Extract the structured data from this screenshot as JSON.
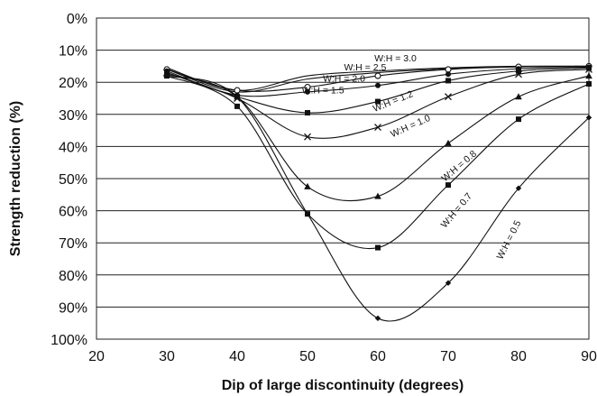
{
  "chart_data": {
    "type": "line",
    "title": "",
    "xlabel": "Dip of large discontinuity (degrees)",
    "ylabel": "Strength reduction (%)",
    "xlim": [
      20,
      90
    ],
    "ylim": [
      0,
      100
    ],
    "y_axis_inverted": true,
    "x_ticks": [
      20,
      30,
      40,
      50,
      60,
      70,
      80,
      90
    ],
    "y_ticks": [
      0,
      10,
      20,
      30,
      40,
      50,
      60,
      70,
      80,
      90,
      100
    ],
    "x_tick_labels": [
      "20",
      "30",
      "40",
      "50",
      "60",
      "70",
      "80",
      "90"
    ],
    "y_tick_labels": [
      "0%",
      "10%",
      "20%",
      "30%",
      "40%",
      "50%",
      "60%",
      "70%",
      "80%",
      "90%",
      "100%"
    ],
    "grid": "horizontal",
    "legend": "none",
    "x": [
      30,
      40,
      50,
      60,
      70,
      80,
      90
    ],
    "series": [
      {
        "key": "s30",
        "label": "W:H = 3.0",
        "marker": "none",
        "values": [
          15.5,
          22.5,
          18,
          16.5,
          15.5,
          15.0,
          15.0
        ]
      },
      {
        "key": "s25",
        "label": "W:H = 2.5",
        "marker": "none",
        "values": [
          16.0,
          23.0,
          19,
          17.0,
          15.8,
          15.2,
          15.0
        ]
      },
      {
        "key": "s20",
        "label": "W:H = 2.0",
        "marker": "circle",
        "values": [
          16.0,
          22.5,
          21.5,
          18.0,
          16.0,
          15.2,
          15.0
        ]
      },
      {
        "key": "s15",
        "label": "W:H = 1.5",
        "marker": "dot",
        "values": [
          16.5,
          24.0,
          23.0,
          21.0,
          17.5,
          15.8,
          15.3
        ]
      },
      {
        "key": "s12",
        "label": "W:H = 1.2",
        "marker": "square",
        "values": [
          17.0,
          24.5,
          29.5,
          26.0,
          19.5,
          16.5,
          15.5
        ]
      },
      {
        "key": "s10",
        "label": "W:H = 1.0",
        "marker": "cross",
        "values": [
          17.0,
          25.0,
          37.0,
          34.0,
          24.5,
          17.5,
          16.0
        ]
      },
      {
        "key": "s08",
        "label": "W:H = 0.8",
        "marker": "triangle",
        "values": [
          17.5,
          24.5,
          52.5,
          55.5,
          39.0,
          24.5,
          18.0
        ]
      },
      {
        "key": "s07",
        "label": "W:H = 0.7",
        "marker": "square",
        "values": [
          18.0,
          27.5,
          61.0,
          71.5,
          52.0,
          31.5,
          20.5
        ]
      },
      {
        "key": "s05",
        "label": "W:H = 0.5",
        "marker": "diamond",
        "values": [
          18.0,
          24.5,
          61.0,
          93.5,
          82.5,
          53.0,
          31.0
        ]
      }
    ],
    "annotations": [
      {
        "series": "s30",
        "text": "W:H = 3.0",
        "x": 62.5,
        "y": 13.5,
        "angle": 0
      },
      {
        "series": "s25",
        "text": "W:H = 2.5",
        "x": 58.2,
        "y": 16.3,
        "angle": 0
      },
      {
        "series": "s20",
        "text": "W:H = 2.0",
        "x": 55.2,
        "y": 19.8,
        "angle": 0
      },
      {
        "series": "s15",
        "text": "W:H = 1.5",
        "x": 52.2,
        "y": 23.5,
        "angle": 0
      },
      {
        "series": "s12",
        "text": "W:H = 1.2",
        "x": 62.3,
        "y": 26.8,
        "angle": -22
      },
      {
        "series": "s10",
        "text": "W:H = 1.0",
        "x": 64.8,
        "y": 34.5,
        "angle": -24
      },
      {
        "series": "s08",
        "text": "W:H = 0.8",
        "x": 71.8,
        "y": 46.8,
        "angle": -40
      },
      {
        "series": "s07",
        "text": "W:H = 0.7",
        "x": 71.5,
        "y": 60.5,
        "angle": -50
      },
      {
        "series": "s05",
        "text": "W:H = 0.5",
        "x": 79.0,
        "y": 69.5,
        "angle": -63
      }
    ]
  }
}
